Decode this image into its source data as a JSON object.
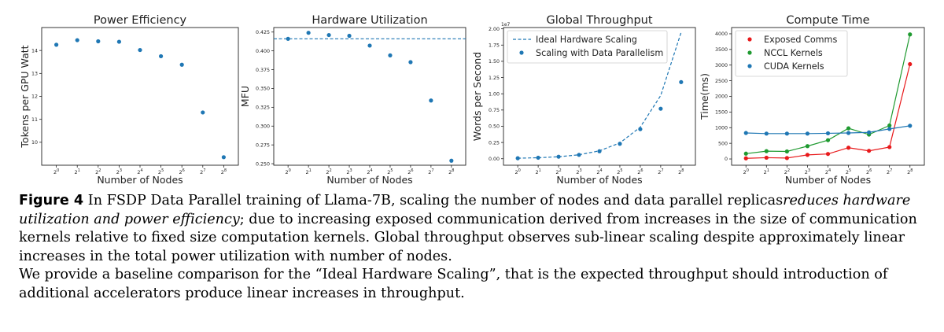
{
  "chart_data": [
    {
      "type": "scatter",
      "title": "Power Efficiency",
      "xlabel": "Number of Nodes",
      "ylabel": "Tokens per GPU Watt",
      "x_ticks": [
        "2^0",
        "2^1",
        "2^2",
        "2^3",
        "2^4",
        "2^5",
        "2^6",
        "2^7",
        "2^8"
      ],
      "ylim": [
        9.0,
        15.0
      ],
      "y_ticks": [
        10,
        11,
        12,
        13,
        14
      ],
      "y_tick_labels": [
        "10",
        "11",
        "12",
        "13",
        "14"
      ],
      "series": [
        {
          "name": "Power Efficiency",
          "color": "#1f77b4",
          "values": [
            14.25,
            14.45,
            14.4,
            14.38,
            14.02,
            13.75,
            13.38,
            11.3,
            9.35
          ]
        }
      ]
    },
    {
      "type": "scatter",
      "title": "Hardware Utilization",
      "xlabel": "Number of Nodes",
      "ylabel": "MFU",
      "x_ticks": [
        "2^0",
        "2^1",
        "2^2",
        "2^3",
        "2^4",
        "2^5",
        "2^6",
        "2^7",
        "2^8"
      ],
      "ylim": [
        0.248,
        0.431
      ],
      "y_ticks": [
        0.25,
        0.275,
        0.3,
        0.325,
        0.35,
        0.375,
        0.4,
        0.425
      ],
      "y_tick_labels": [
        "0.250",
        "0.275",
        "0.300",
        "0.325",
        "0.350",
        "0.375",
        "0.400",
        "0.425"
      ],
      "reference_line": {
        "value": 0.416,
        "color": "#1f77b4",
        "style": "dashed"
      },
      "series": [
        {
          "name": "MFU",
          "color": "#1f77b4",
          "values": [
            0.416,
            0.424,
            0.421,
            0.42,
            0.407,
            0.394,
            0.385,
            0.334,
            0.254
          ]
        }
      ]
    },
    {
      "type": "line",
      "title": "Global Throughput",
      "xlabel": "Number of Nodes",
      "ylabel": "Words per Second",
      "axis_multiplier": "1e7",
      "x_ticks": [
        "2^0",
        "2^1",
        "2^2",
        "2^3",
        "2^4",
        "2^5",
        "2^6",
        "2^7",
        "2^8"
      ],
      "ylim": [
        -0.1,
        2.02
      ],
      "y_ticks": [
        0,
        0.25,
        0.5,
        0.75,
        1.0,
        1.25,
        1.5,
        1.75,
        2.0
      ],
      "y_tick_labels": [
        "0.00",
        "0.25",
        "0.50",
        "0.75",
        "1.00",
        "1.25",
        "1.50",
        "1.75",
        "2.00"
      ],
      "legend": {
        "position": "top-left"
      },
      "series": [
        {
          "name": "Ideal Hardware Scaling",
          "style": "dashed-line",
          "color": "#1f77b4",
          "values": [
            0.0076,
            0.0152,
            0.0304,
            0.0608,
            0.1216,
            0.2432,
            0.4864,
            0.9728,
            1.9456
          ]
        },
        {
          "name": "Scaling with Data Parallelism",
          "style": "points",
          "color": "#1f77b4",
          "values": [
            0.0076,
            0.0155,
            0.031,
            0.06,
            0.115,
            0.23,
            0.455,
            0.77,
            1.18
          ]
        }
      ]
    },
    {
      "type": "line",
      "title": "Compute Time",
      "xlabel": "Number of Nodes",
      "ylabel": "Time(ms)",
      "x_ticks": [
        "2^0",
        "2^1",
        "2^2",
        "2^3",
        "2^4",
        "2^5",
        "2^6",
        "2^7",
        "2^8"
      ],
      "ylim": [
        -200,
        4200
      ],
      "y_ticks": [
        0,
        500,
        1000,
        1500,
        2000,
        2500,
        3000,
        3500,
        4000
      ],
      "y_tick_labels": [
        "0",
        "500",
        "1000",
        "1500",
        "2000",
        "2500",
        "3000",
        "3500",
        "4000"
      ],
      "legend": {
        "position": "top-left"
      },
      "series": [
        {
          "name": "Exposed Comms",
          "color": "#e8191b",
          "values": [
            20,
            40,
            30,
            130,
            160,
            360,
            260,
            380,
            3030
          ]
        },
        {
          "name": "NCCL Kernels",
          "color": "#1f9a30",
          "values": [
            170,
            250,
            240,
            410,
            600,
            980,
            780,
            1070,
            3980
          ]
        },
        {
          "name": "CUDA Kernels",
          "color": "#1f77b4",
          "values": [
            830,
            810,
            810,
            810,
            820,
            830,
            850,
            960,
            1060
          ]
        }
      ]
    }
  ],
  "caption": {
    "label": "Figure 4",
    "text_1": " In FSDP Data Parallel training of Llama-7B, scaling the number of nodes and data parallel replicas",
    "text_1_italic": "reduces hardware utilization and power efficiency",
    "text_2": "; due to increasing exposed communication derived from increases in the size of communication kernels relative to fixed size computation kernels. Global throughput observes sub-linear scaling despite approximately linear increases in the total power utilization with number of nodes.",
    "text_3": "We provide a baseline comparison for the “Ideal Hardware Scaling”, that is the expected throughput should introduction of additional accelerators produce linear increases in throughput."
  }
}
